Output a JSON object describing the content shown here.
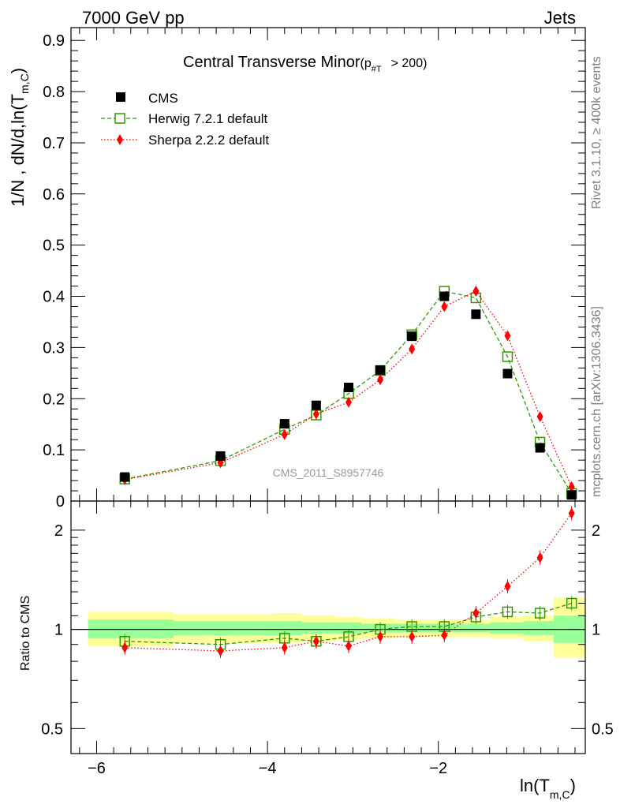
{
  "header": {
    "left": "7000 GeV pp",
    "right": "Jets"
  },
  "side_text": {
    "rivet": "Rivet 3.1.10, ≥ 400k events",
    "mcplots": "mcplots.cern.ch [arXiv:1306.3436]"
  },
  "watermark": "CMS_2011_S8957746",
  "chart_data": [
    {
      "type": "scatter",
      "title": "Central Transverse Minor",
      "title_sub": "(p",
      "title_sub_index": "#T",
      "title_tail": "> 200)",
      "ylabel": "1/N , dN/d,ln(T",
      "ylabel_sub": "m,C",
      "ylabel_tail": ")",
      "xlabel": "ln(T",
      "xlabel_sub": "m,C",
      "xlabel_tail": ")",
      "xlim": [
        -6.3,
        -0.28
      ],
      "ylim": [
        0,
        0.925
      ],
      "xticks": [
        -6,
        -4,
        -2
      ],
      "xtick_labels": [
        "−6",
        "−4",
        "−2"
      ],
      "yticks": [
        0,
        0.1,
        0.2,
        0.3,
        0.4,
        0.5,
        0.6,
        0.7,
        0.8,
        0.9
      ],
      "ytick_labels": [
        "0",
        "0.1",
        "0.2",
        "0.3",
        "0.4",
        "0.5",
        "0.6",
        "0.7",
        "0.8",
        "0.9"
      ],
      "legend_position": "top-left",
      "x": [
        -5.67,
        -4.55,
        -3.8,
        -3.43,
        -3.05,
        -2.68,
        -2.31,
        -1.93,
        -1.56,
        -1.19,
        -0.81,
        -0.44
      ],
      "series": [
        {
          "name": "CMS",
          "color": "#000000",
          "marker": "square-filled",
          "values": [
            0.047,
            0.088,
            0.151,
            0.187,
            0.222,
            0.256,
            0.322,
            0.4,
            0.365,
            0.249,
            0.104,
            0.012
          ]
        },
        {
          "name": "Herwig 7.2.1 default",
          "color": "#339900",
          "marker": "square-open",
          "line": "dashed",
          "values": [
            0.043,
            0.079,
            0.14,
            0.168,
            0.21,
            0.255,
            0.325,
            0.41,
            0.397,
            0.282,
            0.115,
            0.015
          ]
        },
        {
          "name": "Sherpa 2.2.2 default",
          "color": "#ff0000",
          "marker": "diamond",
          "line": "dotted",
          "values": [
            0.042,
            0.075,
            0.13,
            0.17,
            0.193,
            0.237,
            0.297,
            0.38,
            0.41,
            0.323,
            0.165,
            0.028
          ]
        }
      ]
    },
    {
      "type": "scatter",
      "ylabel": "Ratio to CMS",
      "ylim": [
        0.42,
        2.45
      ],
      "log_y": true,
      "yticks": [
        0.5,
        1,
        2
      ],
      "ytick_labels": [
        "0.5",
        "1",
        "2"
      ],
      "x": [
        -5.67,
        -4.55,
        -3.8,
        -3.43,
        -3.05,
        -2.68,
        -2.31,
        -1.93,
        -1.56,
        -1.19,
        -0.81,
        -0.44
      ],
      "bands": {
        "edges": [
          -6.1,
          -5.1,
          -3.95,
          -3.6,
          -3.2,
          -2.9,
          -2.5,
          -2.1,
          -1.75,
          -1.4,
          -1.0,
          -0.65,
          -0.28
        ],
        "inner_color": "#99ff99",
        "outer_color": "#ffff99",
        "inner": [
          [
            0.94,
            1.07
          ],
          [
            0.96,
            1.06
          ],
          [
            0.96,
            1.06
          ],
          [
            0.97,
            1.05
          ],
          [
            0.97,
            1.05
          ],
          [
            0.98,
            1.04
          ],
          [
            0.98,
            1.04
          ],
          [
            0.98,
            1.04
          ],
          [
            0.98,
            1.04
          ],
          [
            0.97,
            1.05
          ],
          [
            0.96,
            1.06
          ],
          [
            0.91,
            1.1
          ]
        ],
        "outer": [
          [
            0.89,
            1.13
          ],
          [
            0.91,
            1.11
          ],
          [
            0.91,
            1.12
          ],
          [
            0.92,
            1.1
          ],
          [
            0.93,
            1.09
          ],
          [
            0.94,
            1.08
          ],
          [
            0.95,
            1.07
          ],
          [
            0.95,
            1.07
          ],
          [
            0.95,
            1.07
          ],
          [
            0.94,
            1.09
          ],
          [
            0.92,
            1.1
          ],
          [
            0.82,
            1.25
          ]
        ]
      },
      "series": [
        {
          "name": "Herwig 7.2.1 default",
          "color": "#339900",
          "marker": "square-open",
          "line": "dashed",
          "values": [
            0.92,
            0.9,
            0.94,
            0.92,
            0.95,
            1.0,
            1.02,
            1.02,
            1.09,
            1.13,
            1.12,
            1.2
          ]
        },
        {
          "name": "Sherpa 2.2.2 default",
          "color": "#ff0000",
          "marker": "diamond",
          "line": "dotted",
          "values": [
            0.88,
            0.86,
            0.88,
            0.92,
            0.89,
            0.95,
            0.95,
            0.96,
            1.12,
            1.35,
            1.65,
            2.25
          ]
        }
      ]
    }
  ]
}
